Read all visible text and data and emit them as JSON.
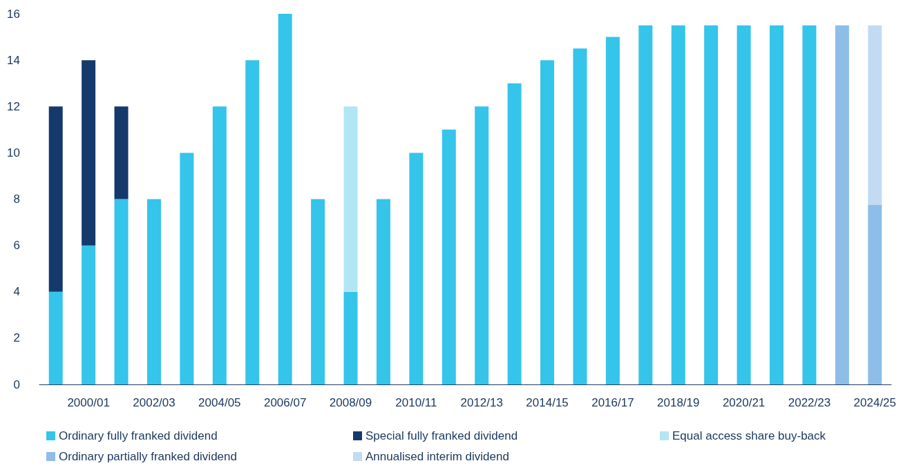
{
  "chart_data": {
    "type": "bar",
    "stacked": true,
    "categories": [
      null,
      "2000/01",
      null,
      "2002/03",
      null,
      "2004/05",
      null,
      "2006/07",
      null,
      "2008/09",
      null,
      "2010/11",
      null,
      "2012/13",
      null,
      "2014/15",
      null,
      "2016/17",
      null,
      "2018/19",
      null,
      "2020/21",
      null,
      "2022/23",
      null,
      "2024/25"
    ],
    "series": [
      {
        "name": "Ordinary fully franked dividend",
        "color": "#35c4ea",
        "values": [
          4,
          6,
          8,
          8,
          10,
          12,
          14,
          16,
          8,
          4,
          8,
          10,
          11,
          12,
          13,
          14,
          14.5,
          15,
          15.5,
          15.5,
          15.5,
          15.5,
          15.5,
          15.5,
          null,
          null
        ]
      },
      {
        "name": "Special fully franked dividend",
        "color": "#143a6b",
        "values": [
          8,
          8,
          4,
          null,
          null,
          null,
          null,
          null,
          null,
          null,
          null,
          null,
          null,
          null,
          null,
          null,
          null,
          null,
          null,
          null,
          null,
          null,
          null,
          null,
          null,
          null
        ]
      },
      {
        "name": "Equal access share buy-back",
        "color": "#b3e6f5",
        "values": [
          null,
          null,
          null,
          null,
          null,
          null,
          null,
          null,
          null,
          8,
          null,
          null,
          null,
          null,
          null,
          null,
          null,
          null,
          null,
          null,
          null,
          null,
          null,
          null,
          null,
          null
        ]
      },
      {
        "name": "Ordinary partially franked dividend",
        "color": "#8ebde8",
        "values": [
          null,
          null,
          null,
          null,
          null,
          null,
          null,
          null,
          null,
          null,
          null,
          null,
          null,
          null,
          null,
          null,
          null,
          null,
          null,
          null,
          null,
          null,
          null,
          null,
          15.5,
          7.75
        ]
      },
      {
        "name": "Annualised interim dividend",
        "color": "#c2dbf3",
        "values": [
          null,
          null,
          null,
          null,
          null,
          null,
          null,
          null,
          null,
          null,
          null,
          null,
          null,
          null,
          null,
          null,
          null,
          null,
          null,
          null,
          null,
          null,
          null,
          null,
          null,
          7.75
        ]
      }
    ],
    "ylim": [
      0,
      16
    ],
    "yticks": [
      0,
      2,
      4,
      6,
      8,
      10,
      12,
      14,
      16
    ],
    "grid": false,
    "legend": "bottom"
  }
}
